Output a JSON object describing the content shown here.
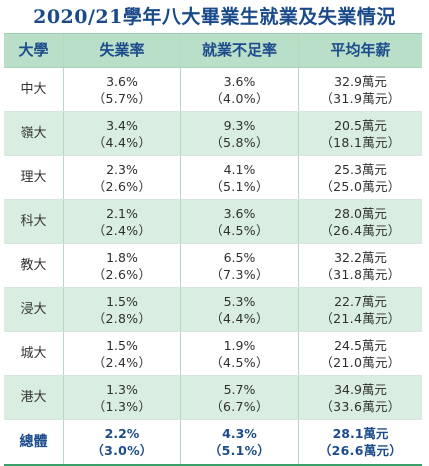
{
  "title": "2020/21學年八大畢業生就業及失業情況",
  "headers": {
    "university": "大學",
    "unemployment": "失業率",
    "underemployment": "就業不足率",
    "salary": "平均年薪"
  },
  "rows": [
    {
      "university": "中大",
      "unemployment": "3.6%",
      "unemployment_prev": "（5.7%）",
      "underemployment": "3.6%",
      "underemployment_prev": "（4.0%）",
      "salary": "32.9萬元",
      "salary_prev": "（31.9萬元）"
    },
    {
      "university": "嶺大",
      "unemployment": "3.4%",
      "unemployment_prev": "（4.4%）",
      "underemployment": "9.3%",
      "underemployment_prev": "（5.8%）",
      "salary": "20.5萬元",
      "salary_prev": "（18.1萬元）"
    },
    {
      "university": "理大",
      "unemployment": "2.3%",
      "unemployment_prev": "（2.6%）",
      "underemployment": "4.1%",
      "underemployment_prev": "（5.1%）",
      "salary": "25.3萬元",
      "salary_prev": "（25.0萬元）"
    },
    {
      "university": "科大",
      "unemployment": "2.1%",
      "unemployment_prev": "（2.4%）",
      "underemployment": "3.6%",
      "underemployment_prev": "（4.5%）",
      "salary": "28.0萬元",
      "salary_prev": "（26.4萬元）"
    },
    {
      "university": "教大",
      "unemployment": "1.8%",
      "unemployment_prev": "（2.6%）",
      "underemployment": "6.5%",
      "underemployment_prev": "（7.3%）",
      "salary": "32.2萬元",
      "salary_prev": "（31.8萬元）"
    },
    {
      "university": "浸大",
      "unemployment": "1.5%",
      "unemployment_prev": "（2.8%）",
      "underemployment": "5.3%",
      "underemployment_prev": "（4.4%）",
      "salary": "22.7萬元",
      "salary_prev": "（21.4萬元）"
    },
    {
      "university": "城大",
      "unemployment": "1.5%",
      "unemployment_prev": "（2.4%）",
      "underemployment": "1.9%",
      "underemployment_prev": "（4.5%）",
      "salary": "24.5萬元",
      "salary_prev": "（21.0萬元）"
    },
    {
      "university": "港大",
      "unemployment": "1.3%",
      "unemployment_prev": "（1.3%）",
      "underemployment": "5.7%",
      "underemployment_prev": "（6.7%）",
      "salary": "34.9萬元",
      "salary_prev": "（33.6萬元）"
    }
  ],
  "total": {
    "university": "總體",
    "unemployment": "2.2%",
    "unemployment_prev": "（3.0%）",
    "underemployment": "4.3%",
    "underemployment_prev": "（5.1%）",
    "salary": "28.1萬元",
    "salary_prev": "（26.6萬元）"
  },
  "colors": {
    "title": "#1a4a8a",
    "header_bg": "#b9dfc8",
    "stripe_bg": "#d9eee1",
    "total_text": "#1d4c8c",
    "border_accent": "#3aa06a"
  }
}
